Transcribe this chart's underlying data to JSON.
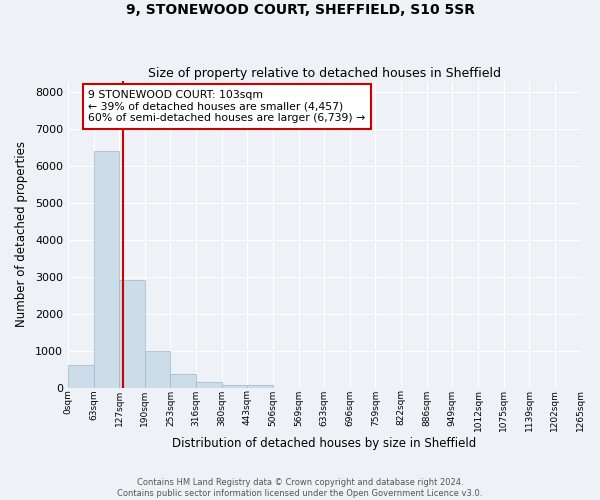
{
  "title": "9, STONEWOOD COURT, SHEFFIELD, S10 5SR",
  "subtitle": "Size of property relative to detached houses in Sheffield",
  "xlabel": "Distribution of detached houses by size in Sheffield",
  "ylabel": "Number of detached properties",
  "bar_color": "#ccdce8",
  "bar_edge_color": "#9ab8cc",
  "bar_values": [
    620,
    6400,
    2920,
    1000,
    370,
    170,
    90,
    70,
    0,
    0,
    0,
    0,
    0,
    0,
    0,
    0,
    0,
    0,
    0,
    0
  ],
  "x_labels": [
    "0sqm",
    "63sqm",
    "127sqm",
    "190sqm",
    "253sqm",
    "316sqm",
    "380sqm",
    "443sqm",
    "506sqm",
    "569sqm",
    "633sqm",
    "696sqm",
    "759sqm",
    "822sqm",
    "886sqm",
    "949sqm",
    "1012sqm",
    "1075sqm",
    "1139sqm",
    "1202sqm",
    "1265sqm"
  ],
  "num_bars": 20,
  "ylim": [
    0,
    8300
  ],
  "yticks": [
    0,
    1000,
    2000,
    3000,
    4000,
    5000,
    6000,
    7000,
    8000
  ],
  "property_line_bin": 1.635,
  "annotation_line1": "9 STONEWOOD COURT: 103sqm",
  "annotation_line2": "← 39% of detached houses are smaller (4,457)",
  "annotation_line3": "60% of semi-detached houses are larger (6,739) →",
  "annotation_box_color": "#ffffff",
  "annotation_box_edge": "#cc0000",
  "red_line_color": "#cc0000",
  "background_color": "#eef2f7",
  "grid_color": "#ffffff",
  "footer_line1": "Contains HM Land Registry data © Crown copyright and database right 2024.",
  "footer_line2": "Contains public sector information licensed under the Open Government Licence v3.0."
}
